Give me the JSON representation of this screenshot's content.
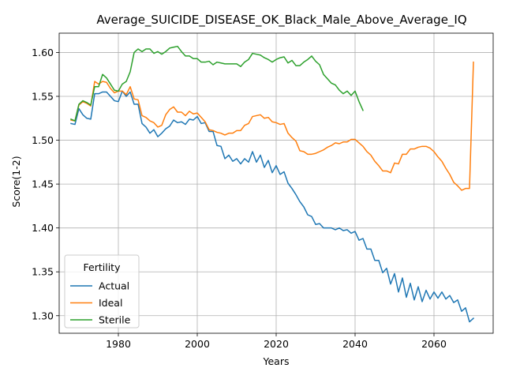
{
  "chart_data": {
    "type": "line",
    "title": "Average_SUICIDE_DISEASE_OK_Black_Male_Above_Average_IQ",
    "xlabel": "Years",
    "ylabel": "Score(1-2)",
    "xlim": [
      1965,
      2075
    ],
    "ylim": [
      1.28,
      1.622
    ],
    "x_ticks": [
      1980,
      2000,
      2020,
      2040,
      2060
    ],
    "y_ticks": [
      1.3,
      1.35,
      1.4,
      1.45,
      1.5,
      1.55,
      1.6
    ],
    "x_tick_labels": [
      "1980",
      "2000",
      "2020",
      "2040",
      "2060"
    ],
    "y_tick_labels": [
      "1.30",
      "1.35",
      "1.40",
      "1.45",
      "1.50",
      "1.55",
      "1.60"
    ],
    "grid": true,
    "legend": {
      "title": "Fertility",
      "placement": "lower-left"
    },
    "series": [
      {
        "name": "Actual",
        "color": "#1f77b4",
        "x_start": 1968,
        "values": [
          1.519,
          1.518,
          1.536,
          1.529,
          1.525,
          1.524,
          1.553,
          1.553,
          1.555,
          1.555,
          1.55,
          1.545,
          1.544,
          1.556,
          1.55,
          1.555,
          1.541,
          1.541,
          1.519,
          1.515,
          1.508,
          1.512,
          1.504,
          1.508,
          1.513,
          1.516,
          1.523,
          1.52,
          1.521,
          1.518,
          1.524,
          1.523,
          1.527,
          1.519,
          1.52,
          1.51,
          1.51,
          1.494,
          1.493,
          1.479,
          1.483,
          1.476,
          1.479,
          1.473,
          1.479,
          1.475,
          1.487,
          1.475,
          1.483,
          1.469,
          1.477,
          1.463,
          1.471,
          1.461,
          1.464,
          1.451,
          1.445,
          1.438,
          1.43,
          1.424,
          1.415,
          1.413,
          1.404,
          1.405,
          1.4,
          1.4,
          1.4,
          1.398,
          1.4,
          1.397,
          1.398,
          1.394,
          1.396,
          1.386,
          1.388,
          1.376,
          1.376,
          1.363,
          1.363,
          1.349,
          1.354,
          1.336,
          1.348,
          1.327,
          1.343,
          1.321,
          1.337,
          1.318,
          1.333,
          1.316,
          1.329,
          1.319,
          1.327,
          1.32,
          1.327,
          1.319,
          1.323,
          1.315,
          1.318,
          1.305,
          1.309,
          1.293,
          1.297
        ]
      },
      {
        "name": "Ideal",
        "color": "#ff7f0e",
        "x_start": 1968,
        "values": [
          1.523,
          1.522,
          1.54,
          1.544,
          1.542,
          1.539,
          1.567,
          1.564,
          1.567,
          1.566,
          1.559,
          1.554,
          1.556,
          1.556,
          1.552,
          1.561,
          1.547,
          1.546,
          1.528,
          1.526,
          1.522,
          1.52,
          1.515,
          1.517,
          1.529,
          1.535,
          1.538,
          1.532,
          1.532,
          1.528,
          1.533,
          1.53,
          1.531,
          1.526,
          1.521,
          1.512,
          1.511,
          1.509,
          1.508,
          1.506,
          1.508,
          1.508,
          1.511,
          1.511,
          1.517,
          1.519,
          1.527,
          1.528,
          1.529,
          1.525,
          1.526,
          1.521,
          1.52,
          1.518,
          1.519,
          1.508,
          1.503,
          1.499,
          1.488,
          1.487,
          1.484,
          1.484,
          1.485,
          1.487,
          1.489,
          1.492,
          1.494,
          1.497,
          1.496,
          1.498,
          1.498,
          1.501,
          1.501,
          1.497,
          1.493,
          1.487,
          1.483,
          1.476,
          1.471,
          1.465,
          1.465,
          1.463,
          1.474,
          1.473,
          1.484,
          1.484,
          1.49,
          1.49,
          1.492,
          1.493,
          1.493,
          1.491,
          1.487,
          1.481,
          1.476,
          1.468,
          1.461,
          1.452,
          1.448,
          1.443,
          1.445,
          1.445,
          1.589
        ]
      },
      {
        "name": "Sterile",
        "color": "#2ca02c",
        "x_start": 1968,
        "values": [
          1.524,
          1.522,
          1.541,
          1.545,
          1.543,
          1.54,
          1.561,
          1.561,
          1.575,
          1.571,
          1.564,
          1.557,
          1.556,
          1.564,
          1.567,
          1.578,
          1.6,
          1.604,
          1.601,
          1.604,
          1.604,
          1.599,
          1.601,
          1.598,
          1.601,
          1.605,
          1.606,
          1.607,
          1.601,
          1.596,
          1.596,
          1.593,
          1.593,
          1.589,
          1.589,
          1.59,
          1.586,
          1.589,
          1.588,
          1.587,
          1.587,
          1.587,
          1.587,
          1.584,
          1.589,
          1.592,
          1.599,
          1.598,
          1.597,
          1.594,
          1.592,
          1.589,
          1.592,
          1.594,
          1.595,
          1.588,
          1.591,
          1.585,
          1.585,
          1.589,
          1.592,
          1.596,
          1.59,
          1.586,
          1.575,
          1.57,
          1.565,
          1.563,
          1.557,
          1.553,
          1.556,
          1.551,
          1.556,
          1.544,
          1.534
        ]
      }
    ]
  }
}
